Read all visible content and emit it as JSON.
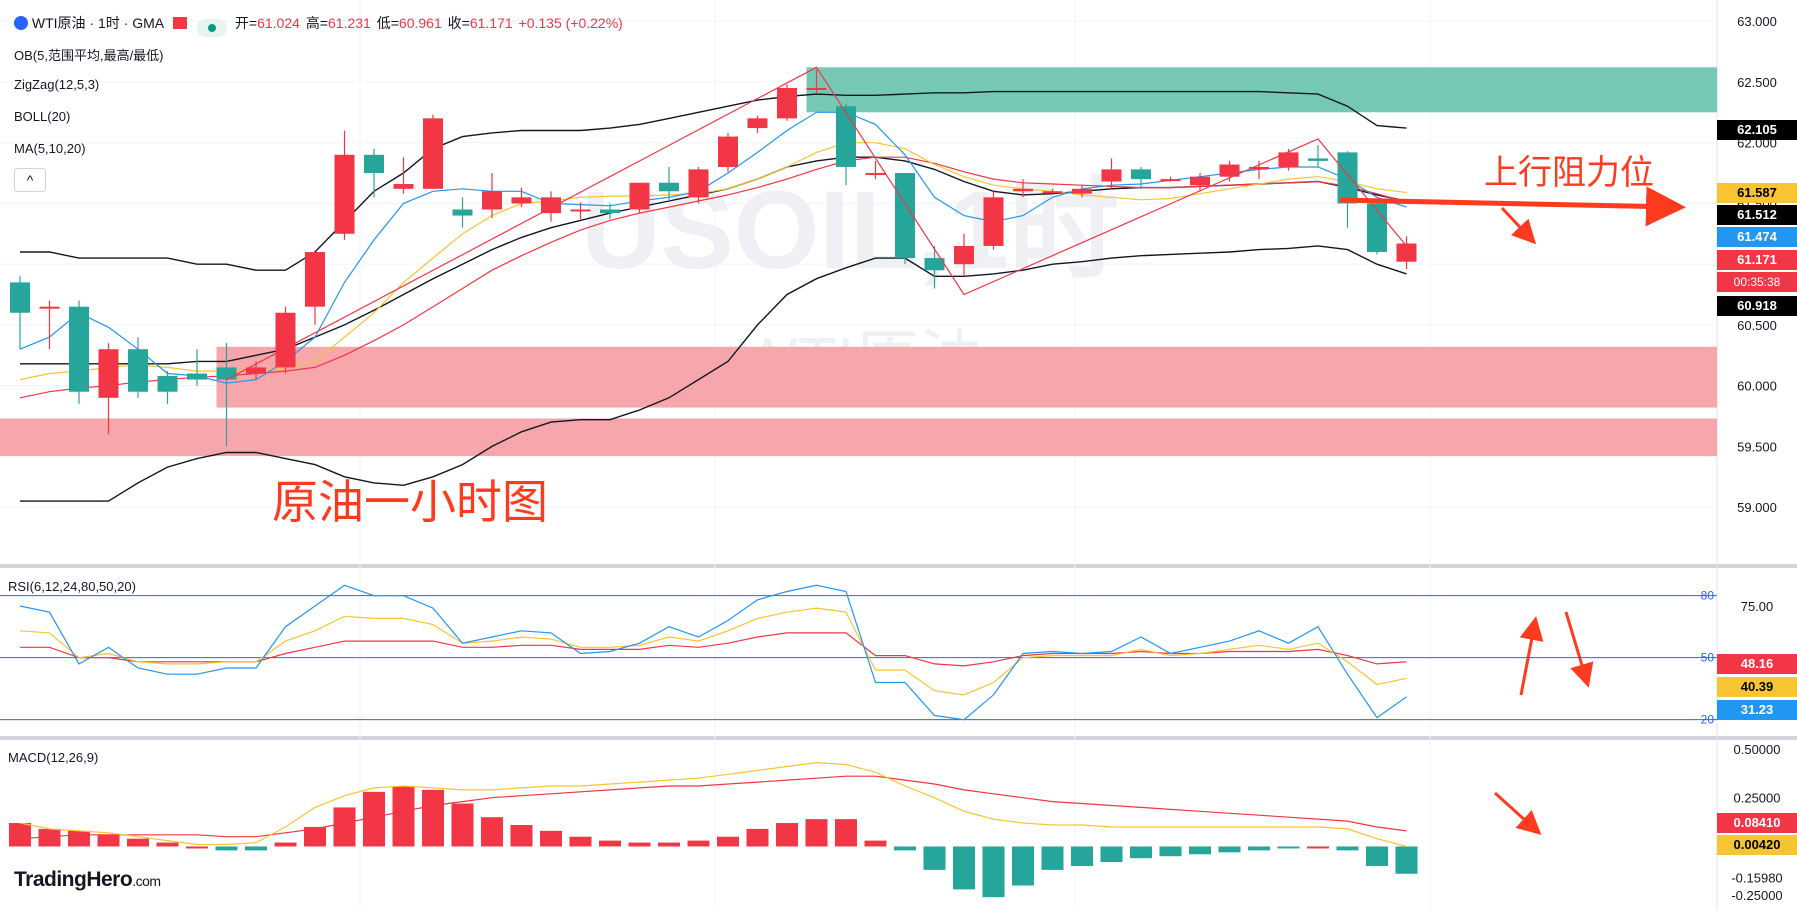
{
  "header": {
    "symbol_title": "WTI原油 · 1时 · GMA",
    "open_label": "开=",
    "open": "61.024",
    "high_label": "高=",
    "high": "61.231",
    "low_label": "低=",
    "low": "60.961",
    "close_label": "收=",
    "close": "61.171",
    "change": "+0.135 (+0.22%)"
  },
  "indicators": [
    "OB(5,范围平均,最高/最低)",
    "ZigZag(12,5,3)",
    "BOLL(20)",
    "MA(5,10,20)"
  ],
  "collapse_glyph": "^",
  "watermark": {
    "symbol": "USOIL,1时",
    "name": "WTI原油"
  },
  "annotations": {
    "resistance": "上行阻力位",
    "chart_caption": "原油一小时图"
  },
  "logo": {
    "brand": "TradingHero",
    "suffix": ".com"
  },
  "price_tags": [
    {
      "value": "62.105",
      "color": "#000000"
    },
    {
      "value": "61.587",
      "color": "#f7c531"
    },
    {
      "value": "61.512",
      "color": "#000000"
    },
    {
      "value": "61.474",
      "color": "#2196f3"
    },
    {
      "value": "61.171",
      "color": "#f23645"
    },
    {
      "value": "00:35:38",
      "color": "#f23645"
    },
    {
      "value": "60.918",
      "color": "#000000"
    }
  ],
  "rsi": {
    "label": "RSI(6,12,24,80,50,20)",
    "levels": [
      "80",
      "50",
      "20"
    ],
    "axis_ticks": [
      "75.00"
    ],
    "tags": [
      {
        "value": "48.16",
        "color": "#f23645"
      },
      {
        "value": "40.39",
        "color": "#f7c531"
      },
      {
        "value": "31.23",
        "color": "#2196f3"
      }
    ]
  },
  "macd": {
    "label": "MACD(12,26,9)",
    "axis_ticks": [
      "0.50000",
      "0.25000",
      "-0.15980",
      "-0.25000"
    ],
    "tags": [
      {
        "value": "0.08410",
        "color": "#f23645"
      },
      {
        "value": "0.00420",
        "color": "#f7c531"
      }
    ]
  },
  "colors": {
    "up": "#f23645",
    "down": "#26a69a",
    "ob_supply": "#6ec6b0",
    "ob_demand": "#f7a1a7",
    "boll": "#131722",
    "ma5": "#2196f3",
    "ma10": "#f7c531",
    "ma20": "#f23645",
    "zigzag": "#f23645",
    "annotation": "#ff3b1f"
  },
  "chart_data": {
    "type": "candlestick",
    "timeframe": "1H",
    "y_axis_ticks": [
      "63.000",
      "62.500",
      "62.000",
      "61.500",
      "61.000",
      "60.500",
      "60.000",
      "59.500",
      "59.000"
    ],
    "ylim": [
      58.45,
      63.1
    ],
    "candles": [
      [
        60.85,
        60.6,
        60.9,
        60.3
      ],
      [
        60.65,
        60.65,
        60.7,
        60.3
      ],
      [
        60.65,
        59.95,
        60.7,
        59.85
      ],
      [
        59.9,
        60.3,
        60.35,
        59.6
      ],
      [
        60.3,
        59.95,
        60.4,
        59.9
      ],
      [
        60.08,
        59.95,
        60.12,
        59.85
      ],
      [
        60.1,
        60.05,
        60.3,
        60.0
      ],
      [
        60.15,
        60.05,
        60.35,
        59.5
      ],
      [
        60.1,
        60.15,
        60.2,
        60.05
      ],
      [
        60.15,
        60.6,
        60.65,
        60.1
      ],
      [
        60.65,
        61.1,
        61.1,
        60.5
      ],
      [
        61.25,
        61.9,
        62.1,
        61.2
      ],
      [
        61.9,
        61.75,
        61.95,
        61.55
      ],
      [
        61.62,
        61.66,
        61.88,
        61.58
      ],
      [
        61.62,
        62.2,
        62.23,
        61.62
      ],
      [
        61.45,
        61.4,
        61.55,
        61.3
      ],
      [
        61.45,
        61.6,
        61.75,
        61.38
      ],
      [
        61.5,
        61.55,
        61.63,
        61.47
      ],
      [
        61.42,
        61.55,
        61.6,
        61.35
      ],
      [
        61.45,
        61.45,
        61.51,
        61.37
      ],
      [
        61.45,
        61.42,
        61.5,
        61.37
      ],
      [
        61.45,
        61.67,
        61.67,
        61.42
      ],
      [
        61.67,
        61.6,
        61.8,
        61.52
      ],
      [
        61.55,
        61.78,
        61.8,
        61.5
      ],
      [
        61.8,
        62.05,
        62.08,
        61.76
      ],
      [
        62.12,
        62.2,
        62.22,
        62.08
      ],
      [
        62.2,
        62.45,
        62.48,
        62.18
      ],
      [
        62.45,
        62.45,
        62.6,
        62.4
      ],
      [
        62.3,
        61.8,
        62.32,
        61.65
      ],
      [
        61.75,
        61.75,
        61.85,
        61.7
      ],
      [
        61.75,
        61.05,
        61.75,
        61.0
      ],
      [
        61.05,
        60.95,
        61.15,
        60.8
      ],
      [
        61.0,
        61.15,
        61.25,
        60.9
      ],
      [
        61.15,
        61.55,
        61.6,
        61.12
      ],
      [
        61.6,
        61.62,
        61.7,
        61.55
      ],
      [
        61.6,
        61.6,
        61.62,
        61.58
      ],
      [
        61.58,
        61.62,
        61.65,
        61.55
      ],
      [
        61.68,
        61.78,
        61.87,
        61.62
      ],
      [
        61.78,
        61.7,
        61.8,
        61.62
      ],
      [
        61.7,
        61.7,
        61.72,
        61.68
      ],
      [
        61.65,
        61.72,
        61.75,
        61.6
      ],
      [
        61.72,
        61.82,
        61.85,
        61.68
      ],
      [
        61.78,
        61.8,
        61.85,
        61.7
      ],
      [
        61.8,
        61.92,
        61.95,
        61.77
      ],
      [
        61.87,
        61.85,
        61.98,
        61.8
      ],
      [
        61.92,
        61.5,
        61.93,
        61.3
      ],
      [
        61.5,
        61.1,
        61.52,
        61.08
      ],
      [
        61.02,
        61.17,
        61.23,
        60.96
      ]
    ],
    "bollinger": {
      "upper": [
        61.1,
        61.1,
        61.05,
        61.05,
        61.05,
        61.05,
        61.0,
        61.0,
        60.95,
        60.95,
        61.1,
        61.35,
        61.6,
        61.75,
        61.95,
        62.05,
        62.08,
        62.1,
        62.1,
        62.1,
        62.12,
        62.15,
        62.2,
        62.25,
        62.3,
        62.35,
        62.38,
        62.4,
        62.39,
        62.39,
        62.4,
        62.41,
        62.41,
        62.42,
        62.42,
        62.42,
        62.42,
        62.42,
        62.42,
        62.42,
        62.42,
        62.42,
        62.42,
        62.41,
        62.4,
        62.3,
        62.14,
        62.12
      ],
      "middle": [
        60.18,
        60.18,
        60.18,
        60.18,
        60.18,
        60.18,
        60.2,
        60.2,
        60.25,
        60.3,
        60.4,
        60.5,
        60.62,
        60.75,
        60.88,
        61.0,
        61.12,
        61.22,
        61.3,
        61.36,
        61.42,
        61.47,
        61.52,
        61.57,
        61.62,
        61.7,
        61.8,
        61.85,
        61.88,
        61.88,
        61.85,
        61.78,
        61.68,
        61.6,
        61.57,
        61.58,
        61.6,
        61.62,
        61.63,
        61.63,
        61.64,
        61.65,
        61.66,
        61.67,
        61.68,
        61.63,
        61.57,
        61.52
      ],
      "lower": [
        59.05,
        59.05,
        59.05,
        59.05,
        59.2,
        59.33,
        59.4,
        59.45,
        59.45,
        59.4,
        59.35,
        59.25,
        59.2,
        59.18,
        59.25,
        59.35,
        59.5,
        59.62,
        59.7,
        59.72,
        59.72,
        59.8,
        59.9,
        60.05,
        60.2,
        60.5,
        60.75,
        60.88,
        60.97,
        61.05,
        61.05,
        60.9,
        60.9,
        60.92,
        60.95,
        61.0,
        61.02,
        61.05,
        61.07,
        61.08,
        61.09,
        61.1,
        61.12,
        61.13,
        61.15,
        61.12,
        61.0,
        60.92
      ]
    },
    "ma": {
      "ma5": [
        60.3,
        60.4,
        60.6,
        60.48,
        60.3,
        60.1,
        60.08,
        60.02,
        60.05,
        60.2,
        60.4,
        60.85,
        61.2,
        61.5,
        61.6,
        61.62,
        61.6,
        61.6,
        61.5,
        61.49,
        61.48,
        61.52,
        61.55,
        61.6,
        61.75,
        61.92,
        62.1,
        62.25,
        62.25,
        62.15,
        61.9,
        61.55,
        61.4,
        61.35,
        61.4,
        61.55,
        61.62,
        61.65,
        61.66,
        61.69,
        61.72,
        61.75,
        61.78,
        61.8,
        61.8,
        61.7,
        61.55,
        61.47
      ],
      "ma10": [
        60.05,
        60.1,
        60.12,
        60.15,
        60.17,
        60.15,
        60.12,
        60.12,
        60.12,
        60.15,
        60.2,
        60.4,
        60.6,
        60.85,
        61.05,
        61.25,
        61.4,
        61.5,
        61.52,
        61.55,
        61.56,
        61.56,
        61.57,
        61.58,
        61.62,
        61.7,
        61.8,
        61.92,
        62.0,
        62.0,
        61.95,
        61.82,
        61.72,
        61.65,
        61.62,
        61.6,
        61.57,
        61.55,
        61.53,
        61.54,
        61.58,
        61.62,
        61.66,
        61.7,
        61.72,
        61.68,
        61.62,
        61.59
      ],
      "ma20": [
        59.9,
        59.95,
        59.98,
        60.0,
        60.03,
        60.05,
        60.07,
        60.08,
        60.1,
        60.12,
        60.15,
        60.25,
        60.37,
        60.5,
        60.65,
        60.8,
        60.95,
        61.07,
        61.18,
        61.28,
        61.36,
        61.42,
        61.47,
        61.52,
        61.57,
        61.63,
        61.7,
        61.78,
        61.85,
        61.88,
        61.88,
        61.83,
        61.76,
        61.7,
        61.67,
        61.66,
        61.65,
        61.64,
        61.63,
        61.63,
        61.64,
        61.65,
        61.66,
        61.67,
        61.68,
        61.64,
        61.58,
        61.51
      ]
    },
    "zigzag": [
      [
        7,
        60.05
      ],
      [
        27,
        62.62
      ],
      [
        32,
        60.75
      ],
      [
        44,
        62.03
      ],
      [
        47,
        61.15
      ]
    ],
    "order_blocks": [
      {
        "kind": "supply",
        "from_bar": 27,
        "y1": 62.25,
        "y2": 62.62
      },
      {
        "kind": "demand",
        "from_bar": 7,
        "y1": 59.82,
        "y2": 60.32
      },
      {
        "kind": "demand",
        "from_bar": -1,
        "y1": 59.42,
        "y2": 59.73
      }
    ],
    "rsi": {
      "ylim": [
        15,
        90
      ],
      "rsi6": [
        75,
        72,
        47,
        55,
        45,
        42,
        42,
        45,
        45,
        65,
        75,
        85,
        80,
        80,
        74,
        57,
        60,
        63,
        62,
        52,
        53,
        57,
        65,
        60,
        68,
        78,
        82,
        85,
        82,
        38,
        38,
        22,
        20,
        32,
        52,
        53,
        52,
        53,
        60,
        52,
        55,
        58,
        63,
        57,
        65,
        42,
        21,
        31
      ],
      "rsi12": [
        63,
        62,
        50,
        52,
        48,
        47,
        47,
        48,
        48,
        58,
        63,
        70,
        69,
        69,
        66,
        57,
        58,
        60,
        59,
        55,
        55,
        56,
        60,
        58,
        63,
        69,
        72,
        74,
        72,
        44,
        44,
        34,
        32,
        38,
        50,
        51,
        51,
        51,
        54,
        51,
        52,
        54,
        56,
        54,
        57,
        48,
        37,
        40
      ],
      "rsi24": [
        55,
        55,
        50,
        50,
        48,
        48,
        48,
        48,
        48,
        52,
        55,
        58,
        58,
        58,
        58,
        55,
        55,
        56,
        56,
        54,
        54,
        54,
        56,
        55,
        57,
        60,
        62,
        62,
        62,
        51,
        51,
        47,
        46,
        48,
        51,
        52,
        52,
        52,
        53,
        52,
        52,
        53,
        53,
        53,
        54,
        51,
        47,
        48
      ]
    },
    "macd": {
      "ylim": [
        -0.3,
        0.52
      ],
      "histogram": [
        0.12,
        0.09,
        0.08,
        0.06,
        0.04,
        0.02,
        0.0,
        -0.02,
        -0.02,
        0.02,
        0.1,
        0.2,
        0.28,
        0.31,
        0.29,
        0.22,
        0.15,
        0.11,
        0.08,
        0.05,
        0.03,
        0.02,
        0.02,
        0.03,
        0.05,
        0.09,
        0.12,
        0.14,
        0.14,
        0.03,
        -0.02,
        -0.12,
        -0.22,
        -0.26,
        -0.2,
        -0.12,
        -0.1,
        -0.08,
        -0.06,
        -0.05,
        -0.04,
        -0.03,
        -0.02,
        -0.01,
        0.0,
        -0.02,
        -0.1,
        -0.14
      ],
      "macd": [
        0.12,
        0.09,
        0.08,
        0.07,
        0.05,
        0.03,
        0.01,
        0.01,
        0.02,
        0.1,
        0.2,
        0.26,
        0.3,
        0.31,
        0.3,
        0.29,
        0.29,
        0.3,
        0.31,
        0.31,
        0.32,
        0.33,
        0.34,
        0.35,
        0.37,
        0.39,
        0.41,
        0.43,
        0.42,
        0.38,
        0.31,
        0.25,
        0.18,
        0.14,
        0.12,
        0.11,
        0.11,
        0.1,
        0.1,
        0.1,
        0.1,
        0.1,
        0.1,
        0.1,
        0.1,
        0.09,
        0.04,
        0.0
      ],
      "signal": [
        0.04,
        0.05,
        0.06,
        0.06,
        0.06,
        0.06,
        0.06,
        0.05,
        0.05,
        0.07,
        0.09,
        0.12,
        0.15,
        0.18,
        0.21,
        0.23,
        0.25,
        0.26,
        0.27,
        0.28,
        0.29,
        0.3,
        0.31,
        0.31,
        0.32,
        0.33,
        0.34,
        0.35,
        0.36,
        0.36,
        0.34,
        0.32,
        0.29,
        0.27,
        0.25,
        0.23,
        0.22,
        0.21,
        0.2,
        0.19,
        0.18,
        0.17,
        0.16,
        0.15,
        0.14,
        0.13,
        0.1,
        0.08
      ]
    }
  }
}
